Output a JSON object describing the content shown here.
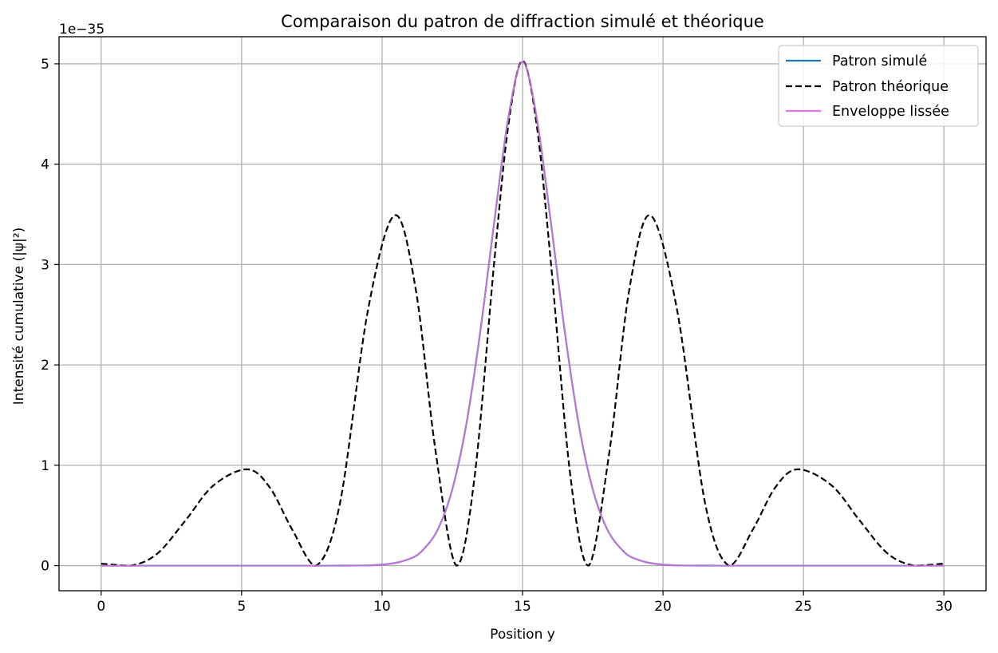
{
  "chart_data": {
    "type": "line",
    "title": "Comparaison du patron de diffraction simulé et théorique",
    "xlabel": "Position y",
    "ylabel": "Intensité cumulative (|ψ|²)",
    "offset_text": "1e−35",
    "xlim": [
      -1.5,
      31.5
    ],
    "ylim": [
      -0.25,
      5.27
    ],
    "xticks": [
      0,
      5,
      10,
      15,
      20,
      25,
      30
    ],
    "xtick_labels": [
      "0",
      "5",
      "10",
      "15",
      "20",
      "25",
      "30"
    ],
    "yticks": [
      0,
      1,
      2,
      3,
      4,
      5
    ],
    "ytick_labels": [
      "0",
      "1",
      "2",
      "3",
      "4",
      "5"
    ],
    "grid": true,
    "legend_position": "top-right",
    "series": [
      {
        "name": "Patron simulé",
        "color": "#1f77b4",
        "style": "solid",
        "x": [
          0,
          8,
          10,
          11,
          11.5,
          12,
          12.5,
          13,
          13.5,
          14,
          14.5,
          15,
          15.5,
          16,
          16.5,
          17,
          17.5,
          18,
          18.5,
          19,
          20,
          22,
          30
        ],
        "y": [
          0,
          0,
          0.01,
          0.07,
          0.17,
          0.37,
          0.76,
          1.41,
          2.34,
          3.44,
          4.47,
          5.02,
          4.47,
          3.44,
          2.34,
          1.41,
          0.76,
          0.37,
          0.17,
          0.07,
          0.01,
          0,
          0
        ]
      },
      {
        "name": "Patron théorique",
        "color": "#000000",
        "style": "dashed",
        "x": [
          0,
          1.05,
          2,
          3,
          4,
          5.2,
          6,
          6.8,
          7.65,
          8.5,
          9.5,
          10.45,
          11.2,
          11.9,
          12.65,
          13.3,
          14,
          14.5,
          15,
          15.5,
          16,
          16.7,
          17.35,
          18.1,
          18.8,
          19.55,
          20.5,
          21.5,
          22.35,
          23.2,
          24,
          24.8,
          26,
          27,
          28,
          28.95,
          30
        ],
        "y": [
          0.02,
          0,
          0.12,
          0.45,
          0.8,
          0.96,
          0.78,
          0.36,
          0,
          0.62,
          2.55,
          3.49,
          2.75,
          1.15,
          0,
          0.9,
          3.05,
          4.4,
          5.03,
          4.4,
          3.05,
          0.9,
          0,
          1.15,
          2.75,
          3.49,
          2.55,
          0.62,
          0,
          0.36,
          0.78,
          0.96,
          0.8,
          0.45,
          0.12,
          0,
          0.02
        ]
      },
      {
        "name": "Enveloppe lissée",
        "color": "#e377e0",
        "style": "solid",
        "x": [
          0,
          8,
          10,
          11,
          11.5,
          12,
          12.5,
          13,
          13.5,
          14,
          14.5,
          15,
          15.5,
          16,
          16.5,
          17,
          17.5,
          18,
          18.5,
          19,
          20,
          22,
          30
        ],
        "y": [
          0,
          0,
          0.01,
          0.07,
          0.17,
          0.37,
          0.76,
          1.41,
          2.34,
          3.44,
          4.47,
          5.02,
          4.47,
          3.44,
          2.34,
          1.41,
          0.76,
          0.37,
          0.17,
          0.07,
          0.01,
          0,
          0
        ]
      }
    ]
  }
}
